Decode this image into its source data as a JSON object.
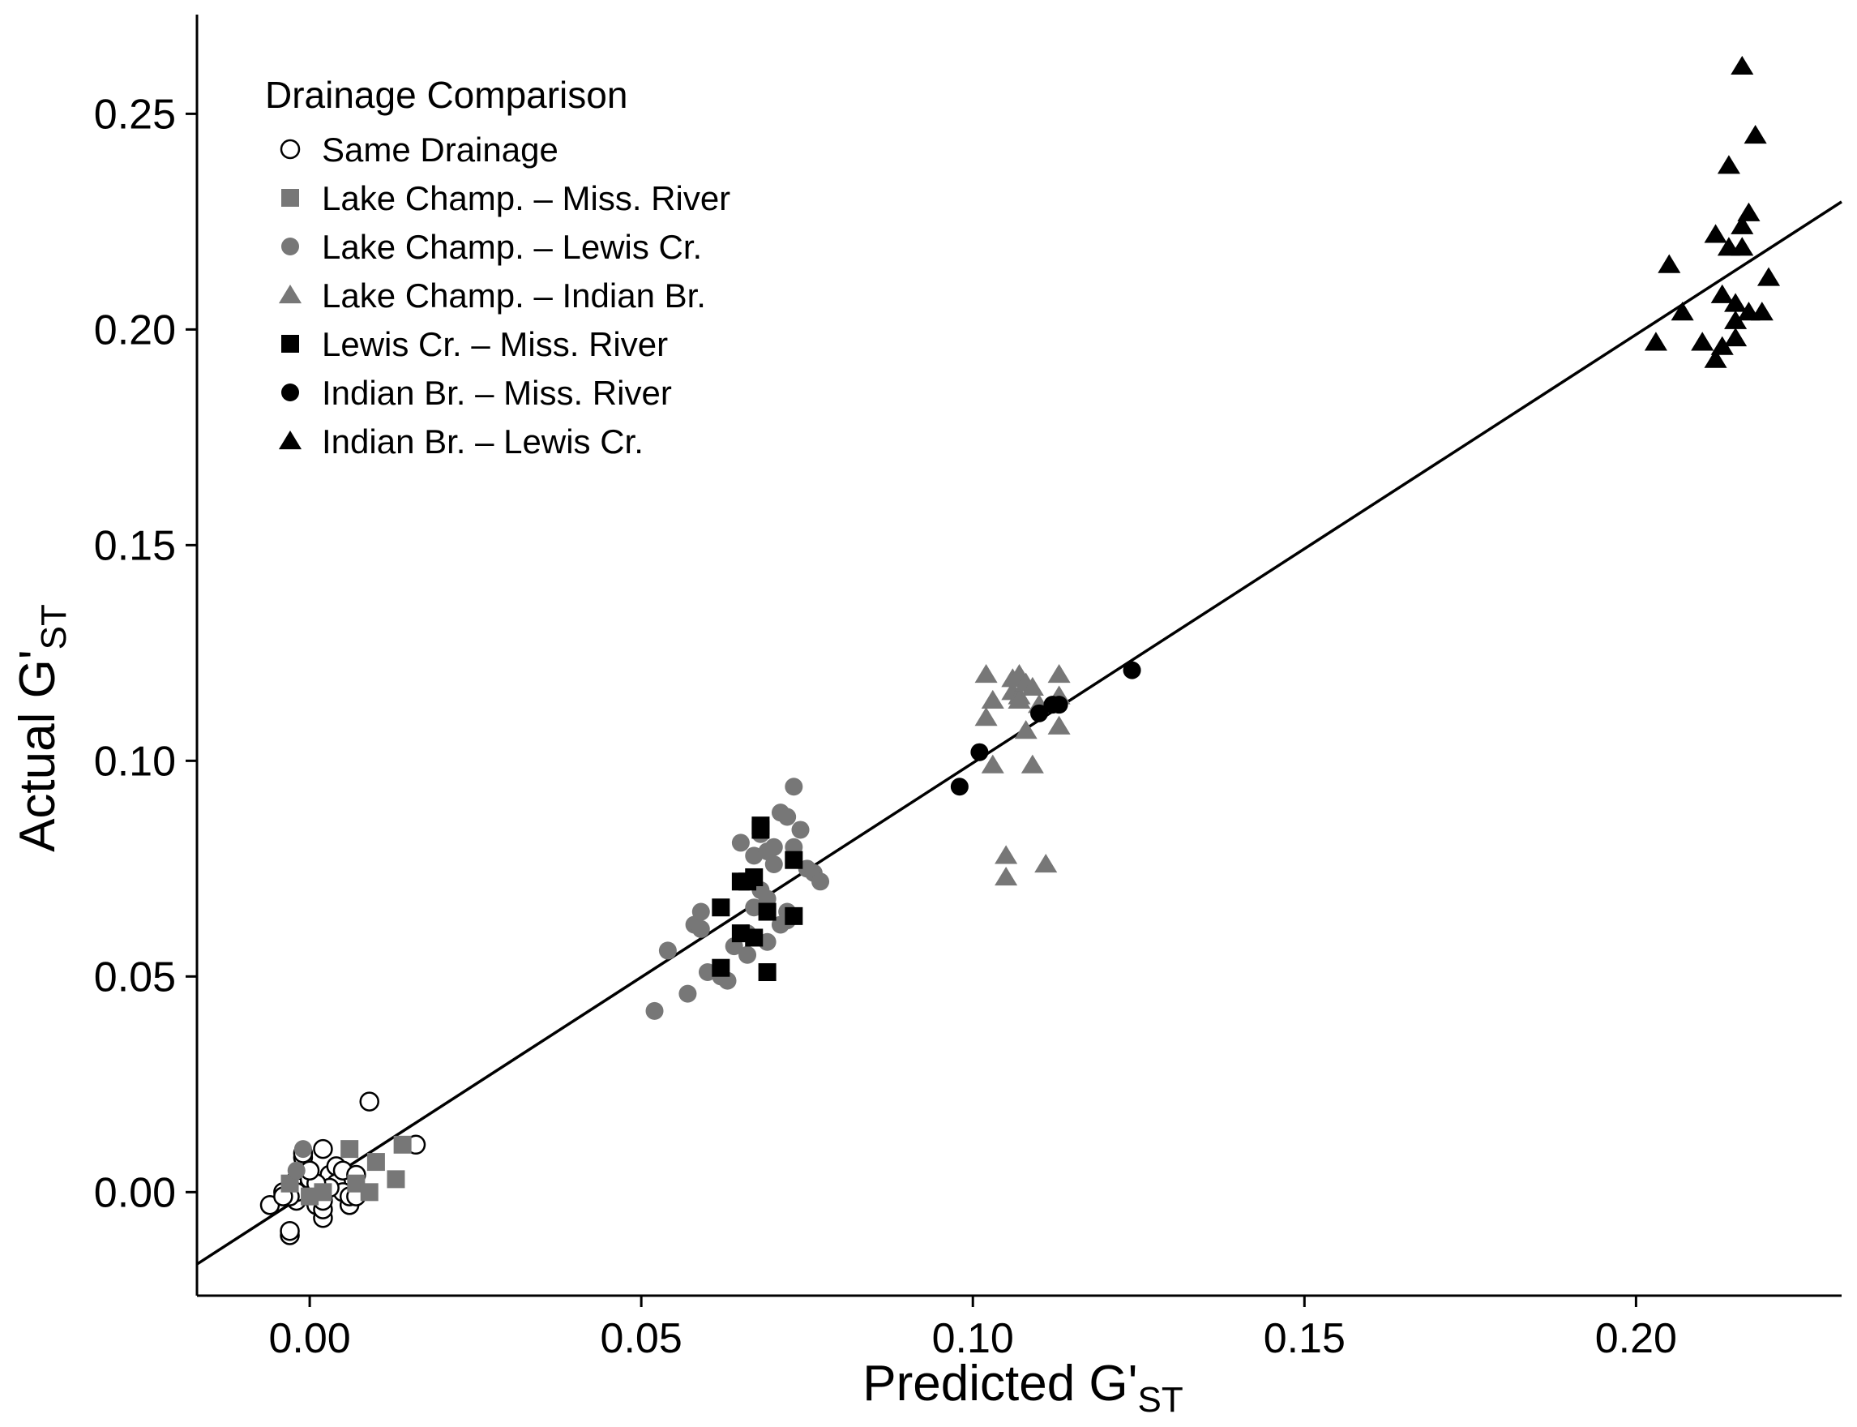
{
  "chart_data": {
    "type": "scatter",
    "title": "",
    "xlabel": "Predicted G'",
    "xlabel_sub": "ST",
    "ylabel": "Actual G'",
    "ylabel_sub": "ST",
    "xlim": [
      -0.017,
      0.231
    ],
    "ylim": [
      -0.024,
      0.273
    ],
    "xticks": [
      0.0,
      0.05,
      0.1,
      0.15,
      0.2
    ],
    "xtick_labels": [
      "0.00",
      "0.05",
      "0.10",
      "0.15",
      "0.20"
    ],
    "yticks": [
      0.0,
      0.05,
      0.1,
      0.15,
      0.2,
      0.25
    ],
    "ytick_labels": [
      "0.00",
      "0.05",
      "0.10",
      "0.15",
      "0.20",
      "0.25"
    ],
    "grid": false,
    "legend_title": "Drainage Comparison",
    "legend_position": "top-left",
    "fit_line": {
      "x": [
        -0.017,
        0.231
      ],
      "y": [
        -0.0167,
        0.2296
      ]
    },
    "series": [
      {
        "name": "Same Drainage",
        "shape": "circle",
        "fill": "none",
        "color": "#000000",
        "x": [
          -0.006,
          -0.004,
          -0.003,
          -0.003,
          -0.002,
          -0.002,
          -0.001,
          -0.001,
          0.0,
          0.0,
          0.001,
          0.001,
          0.002,
          0.002,
          0.002,
          0.003,
          0.004,
          0.004,
          0.005,
          0.005,
          0.006,
          0.006,
          0.007,
          0.007,
          -0.002,
          -0.003,
          0.0,
          0.001,
          0.002,
          -0.001,
          0.003,
          0.009,
          0.016,
          0.001,
          0.0,
          -0.004
        ],
        "y": [
          -0.003,
          0.0,
          -0.01,
          -0.009,
          0.003,
          -0.002,
          0.008,
          0.005,
          -0.001,
          0.002,
          0.001,
          -0.003,
          -0.006,
          0.01,
          -0.004,
          0.004,
          0.006,
          0.002,
          0.005,
          0.0,
          -0.003,
          -0.001,
          0.004,
          -0.001,
          0.0,
          -0.001,
          0.003,
          0.001,
          -0.002,
          0.009,
          0.001,
          0.021,
          0.011,
          0.002,
          0.005,
          -0.001
        ]
      },
      {
        "name": "Lake Champ. – Miss. River",
        "shape": "square",
        "fill": "#777777",
        "color": "#777777",
        "x": [
          -0.003,
          0.0,
          0.002,
          0.006,
          0.007,
          0.009,
          0.01,
          0.013,
          0.014
        ],
        "y": [
          0.002,
          -0.001,
          0.0,
          0.01,
          0.002,
          0.0,
          0.007,
          0.003,
          0.011
        ]
      },
      {
        "name": "Lake Champ. – Lewis Cr.",
        "shape": "circle",
        "fill": "#777777",
        "color": "#777777",
        "x": [
          -0.001,
          -0.002,
          0.052,
          0.054,
          0.057,
          0.058,
          0.059,
          0.059,
          0.06,
          0.062,
          0.063,
          0.064,
          0.065,
          0.066,
          0.066,
          0.067,
          0.067,
          0.068,
          0.068,
          0.069,
          0.069,
          0.07,
          0.07,
          0.071,
          0.071,
          0.072,
          0.072,
          0.073,
          0.073,
          0.074,
          0.075,
          0.076,
          0.077,
          0.072,
          0.069
        ],
        "y": [
          0.01,
          0.005,
          0.042,
          0.056,
          0.046,
          0.062,
          0.065,
          0.061,
          0.051,
          0.05,
          0.049,
          0.057,
          0.081,
          0.055,
          0.06,
          0.078,
          0.066,
          0.083,
          0.07,
          0.079,
          0.068,
          0.08,
          0.076,
          0.088,
          0.062,
          0.087,
          0.065,
          0.08,
          0.094,
          0.084,
          0.075,
          0.074,
          0.072,
          0.063,
          0.058
        ]
      },
      {
        "name": "Lake Champ. – Indian Br.",
        "shape": "triangle",
        "fill": "#777777",
        "color": "#777777",
        "x": [
          0.102,
          0.102,
          0.103,
          0.103,
          0.105,
          0.105,
          0.106,
          0.106,
          0.107,
          0.107,
          0.107,
          0.108,
          0.108,
          0.109,
          0.109,
          0.11,
          0.111,
          0.113,
          0.113,
          0.113
        ],
        "y": [
          0.12,
          0.11,
          0.114,
          0.099,
          0.078,
          0.073,
          0.119,
          0.116,
          0.115,
          0.12,
          0.114,
          0.107,
          0.118,
          0.099,
          0.117,
          0.113,
          0.076,
          0.12,
          0.115,
          0.108
        ]
      },
      {
        "name": "Lewis Cr. – Miss. River",
        "shape": "square",
        "fill": "#000000",
        "color": "#000000",
        "x": [
          0.062,
          0.062,
          0.065,
          0.065,
          0.066,
          0.067,
          0.067,
          0.068,
          0.068,
          0.069,
          0.069,
          0.073,
          0.073
        ],
        "y": [
          0.052,
          0.066,
          0.072,
          0.06,
          0.072,
          0.059,
          0.073,
          0.084,
          0.085,
          0.065,
          0.051,
          0.077,
          0.064
        ]
      },
      {
        "name": "Indian Br. – Miss. River",
        "shape": "circle",
        "fill": "#000000",
        "color": "#000000",
        "x": [
          0.098,
          0.101,
          0.11,
          0.112,
          0.113,
          0.124
        ],
        "y": [
          0.094,
          0.102,
          0.111,
          0.113,
          0.113,
          0.121
        ]
      },
      {
        "name": "Indian Br. – Lewis Cr.",
        "shape": "triangle",
        "fill": "#000000",
        "color": "#000000",
        "x": [
          0.203,
          0.205,
          0.207,
          0.21,
          0.212,
          0.212,
          0.213,
          0.213,
          0.214,
          0.214,
          0.215,
          0.215,
          0.215,
          0.216,
          0.216,
          0.216,
          0.217,
          0.217,
          0.218,
          0.219,
          0.22
        ],
        "y": [
          0.197,
          0.215,
          0.204,
          0.197,
          0.193,
          0.222,
          0.208,
          0.196,
          0.238,
          0.219,
          0.198,
          0.202,
          0.206,
          0.224,
          0.219,
          0.261,
          0.227,
          0.204,
          0.245,
          0.204,
          0.212
        ]
      }
    ]
  }
}
